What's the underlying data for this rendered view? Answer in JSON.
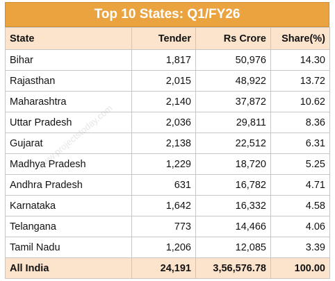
{
  "title": "Top 10 States: Q1/FY26",
  "watermark": "www.projectstoday.com",
  "table": {
    "header": [
      "State",
      "Tender",
      "Rs Crore",
      "Share(%)"
    ],
    "rows": [
      [
        "Bihar",
        "1,817",
        "50,976",
        "14.30"
      ],
      [
        "Rajasthan",
        "2,015",
        "48,922",
        "13.72"
      ],
      [
        "Maharashtra",
        "2,140",
        "37,872",
        "10.62"
      ],
      [
        "Uttar Pradesh",
        "2,036",
        "29,811",
        "8.36"
      ],
      [
        "Gujarat",
        "2,138",
        "22,512",
        "6.31"
      ],
      [
        "Madhya Pradesh",
        "1,229",
        "18,720",
        "5.25"
      ],
      [
        "Andhra Pradesh",
        "631",
        "16,782",
        "4.71"
      ],
      [
        "Karnataka",
        "1,642",
        "16,332",
        "4.58"
      ],
      [
        "Telangana",
        "773",
        "14,466",
        "4.06"
      ],
      [
        "Tamil Nadu",
        "1,206",
        "12,085",
        "3.39"
      ]
    ],
    "total": [
      "All India",
      "24,191",
      "3,56,576.78",
      "100.00"
    ]
  }
}
